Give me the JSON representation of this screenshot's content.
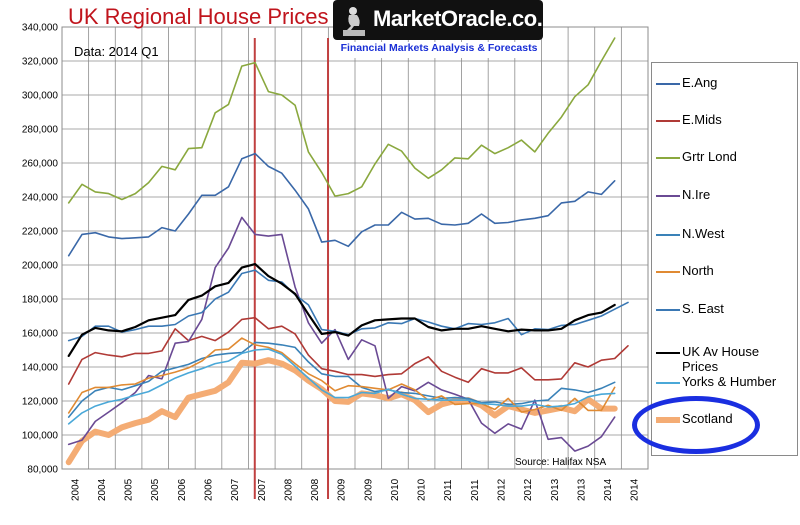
{
  "title": "UK Regional House Prices",
  "note": "Data: 2014 Q1",
  "source": "Source: Halifax NSA",
  "logo": {
    "name": "MarketOracle.co.uk",
    "tagline": "Financial Markets Analysis & Forecasts"
  },
  "chart_data": {
    "type": "line",
    "ylim": [
      80000,
      340000
    ],
    "y_ticks": [
      "80,000",
      "100,000",
      "120,000",
      "140,000",
      "160,000",
      "180,000",
      "200,000",
      "220,000",
      "240,000",
      "260,000",
      "280,000",
      "300,000",
      "320,000",
      "340,000"
    ],
    "x_ticks": [
      "2004",
      "2004",
      "2005",
      "2005",
      "2006",
      "2006",
      "2007",
      "2007",
      "2008",
      "2008",
      "2009",
      "2009",
      "2010",
      "2010",
      "2011",
      "2011",
      "2012",
      "2012",
      "2013",
      "2013",
      "2014",
      "2014"
    ],
    "grid": true,
    "legend_position": "right",
    "vlines_x": [
      7.35,
      10.1
    ],
    "highlighted_series": "Scotland",
    "series": [
      {
        "name": "E.Ang",
        "color": "#3a68a8",
        "width": 1.6,
        "values": [
          205500,
          218000,
          219000,
          216500,
          215500,
          216000,
          216500,
          222000,
          220000,
          230000,
          241000,
          241000,
          246000,
          262500,
          265500,
          258000,
          254000,
          244000,
          233000,
          213500,
          214500,
          211000,
          219500,
          223500,
          223500,
          231000,
          227000,
          227500,
          224000,
          223500,
          224500,
          230000,
          224500,
          225000,
          226500,
          227500,
          229000,
          236500,
          237500,
          243000,
          241500,
          249500,
          null,
          null
        ]
      },
      {
        "name": "E.Mids",
        "color": "#b03a36",
        "width": 1.6,
        "values": [
          130000,
          144500,
          148500,
          147000,
          146000,
          148000,
          148000,
          149500,
          162500,
          155500,
          158000,
          155500,
          160500,
          168000,
          169000,
          162500,
          164000,
          159500,
          147000,
          139000,
          137500,
          135500,
          135500,
          134500,
          135500,
          136000,
          142000,
          146000,
          137500,
          134000,
          131000,
          139000,
          136500,
          136500,
          139500,
          132500,
          132500,
          133000,
          142500,
          140000,
          144000,
          145000,
          152500,
          null
        ]
      },
      {
        "name": "Grtr Lond",
        "color": "#8aa83e",
        "width": 1.6,
        "values": [
          236500,
          247500,
          243000,
          242000,
          238500,
          242000,
          248500,
          258000,
          256000,
          268500,
          269000,
          289500,
          294500,
          317000,
          319000,
          302000,
          300000,
          294000,
          266500,
          254500,
          240500,
          242000,
          246000,
          259500,
          271000,
          267000,
          257000,
          251000,
          256000,
          263000,
          262500,
          270500,
          265500,
          269000,
          273500,
          266500,
          277500,
          287000,
          299000,
          306000,
          320000,
          333500,
          null,
          null
        ]
      },
      {
        "name": "N.Ire",
        "color": "#6a4a94",
        "width": 1.6,
        "values": [
          94500,
          97000,
          108000,
          113500,
          119000,
          125000,
          135000,
          133000,
          154000,
          155000,
          168000,
          198500,
          210000,
          228000,
          218000,
          217000,
          218000,
          187000,
          166000,
          154000,
          162000,
          144500,
          156000,
          152500,
          121500,
          128500,
          126000,
          131000,
          126500,
          124000,
          121000,
          107000,
          101000,
          106500,
          103500,
          120500,
          97500,
          98500,
          90500,
          93500,
          99000,
          110500,
          null,
          null
        ]
      },
      {
        "name": "N.West",
        "color": "#3a82b8",
        "width": 1.6,
        "values": [
          110500,
          120000,
          126000,
          128000,
          126500,
          129000,
          131500,
          137500,
          139500,
          141500,
          145000,
          147000,
          148000,
          148500,
          154500,
          154000,
          153000,
          151500,
          143000,
          136000,
          134500,
          134500,
          128000,
          125500,
          126500,
          125000,
          124500,
          123000,
          121500,
          122000,
          121500,
          119000,
          119500,
          118000,
          118500,
          120000,
          120500,
          127500,
          126500,
          125000,
          127500,
          131000,
          null,
          null
        ]
      },
      {
        "name": "North",
        "color": "#e08a32",
        "width": 1.6,
        "values": [
          113000,
          125000,
          128000,
          128000,
          129500,
          130000,
          133500,
          135000,
          137000,
          139500,
          143500,
          150000,
          150500,
          157000,
          153000,
          151500,
          148500,
          142000,
          136000,
          132000,
          126000,
          129000,
          128500,
          127500,
          126500,
          130000,
          126500,
          120500,
          123000,
          118000,
          118500,
          118500,
          115000,
          121500,
          113500,
          115000,
          117500,
          114500,
          121500,
          114500,
          114500,
          128000,
          null,
          null
        ]
      },
      {
        "name": "S. East",
        "color": "#3a78b4",
        "width": 1.6,
        "values": [
          155500,
          158000,
          164000,
          164000,
          160500,
          162000,
          164000,
          164000,
          165000,
          170000,
          172000,
          180000,
          184000,
          195000,
          197000,
          191000,
          190000,
          182500,
          176500,
          162000,
          161000,
          159000,
          162500,
          163000,
          166000,
          165500,
          168500,
          166500,
          164000,
          162500,
          165500,
          165000,
          166000,
          168500,
          159000,
          162500,
          162000,
          164500,
          165000,
          167500,
          170000,
          174000,
          178000,
          null
        ]
      },
      {
        "name": "UK Av House Prices",
        "color": "#000000",
        "width": 2.2,
        "values": [
          146500,
          159000,
          163000,
          161500,
          161000,
          163500,
          167500,
          169000,
          170500,
          179500,
          182000,
          187500,
          189500,
          198500,
          200500,
          193500,
          189000,
          183000,
          171000,
          159500,
          160500,
          158500,
          164500,
          167500,
          168000,
          168500,
          168500,
          163500,
          161500,
          162500,
          162500,
          164000,
          162500,
          161000,
          162000,
          161500,
          161500,
          162500,
          167500,
          170500,
          172000,
          176500,
          null,
          null
        ]
      },
      {
        "name": "Yorks & Humber",
        "color": "#4aa8d8",
        "width": 1.6,
        "values": [
          106500,
          113000,
          117000,
          119500,
          121000,
          123500,
          125500,
          129500,
          133500,
          136500,
          139000,
          142000,
          143500,
          148000,
          150000,
          150500,
          147500,
          140500,
          133500,
          126500,
          122000,
          122000,
          125000,
          124500,
          127000,
          124000,
          121500,
          121000,
          120500,
          120500,
          120500,
          118500,
          118000,
          117000,
          117000,
          118000,
          116500,
          117000,
          118500,
          122500,
          124000,
          124500,
          null,
          null
        ]
      },
      {
        "name": "Scotland",
        "color": "#f4ac74",
        "width": 6,
        "values": [
          84000,
          96500,
          102000,
          100000,
          104500,
          107000,
          109000,
          114000,
          110500,
          122000,
          124000,
          126000,
          131000,
          142500,
          142000,
          144000,
          142000,
          138000,
          132000,
          127000,
          120000,
          119500,
          124500,
          123500,
          121500,
          124000,
          120500,
          113500,
          118000,
          120000,
          120500,
          117500,
          111500,
          117000,
          115000,
          113000,
          114500,
          116000,
          114000,
          121000,
          115500,
          115500,
          null,
          null
        ]
      }
    ]
  }
}
